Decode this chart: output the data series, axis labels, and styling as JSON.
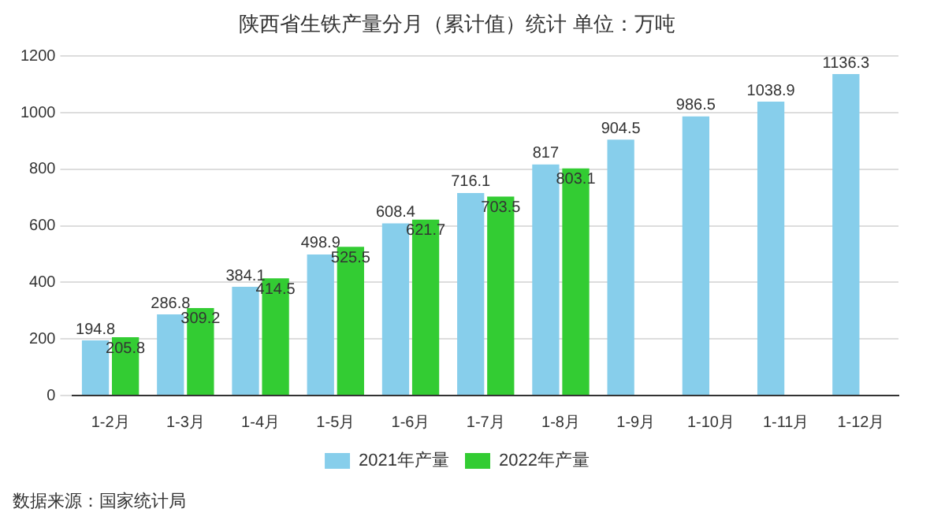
{
  "chart_data": {
    "type": "bar",
    "title": "陕西省生铁产量分月（累计值）统计 单位：万吨",
    "categories": [
      "1-2月",
      "1-3月",
      "1-4月",
      "1-5月",
      "1-6月",
      "1-7月",
      "1-8月",
      "1-9月",
      "1-10月",
      "1-11月",
      "1-12月"
    ],
    "series": [
      {
        "name": "2021年产量",
        "color": "#87ceeb",
        "values": [
          194.8,
          286.8,
          384.1,
          498.9,
          608.4,
          716.1,
          817,
          904.5,
          986.5,
          1038.9,
          1136.3
        ]
      },
      {
        "name": "2022年产量",
        "color": "#33cc33",
        "values": [
          205.8,
          309.2,
          414.5,
          525.5,
          621.7,
          703.5,
          803.1,
          null,
          null,
          null,
          null
        ]
      }
    ],
    "ylim": [
      0,
      1200
    ],
    "yticks": [
      0,
      200,
      400,
      600,
      800,
      1000,
      1200
    ],
    "grid": "y",
    "legend": "bottom",
    "data_labels": true,
    "annotations": [
      "数据来源：国家统计局"
    ]
  }
}
